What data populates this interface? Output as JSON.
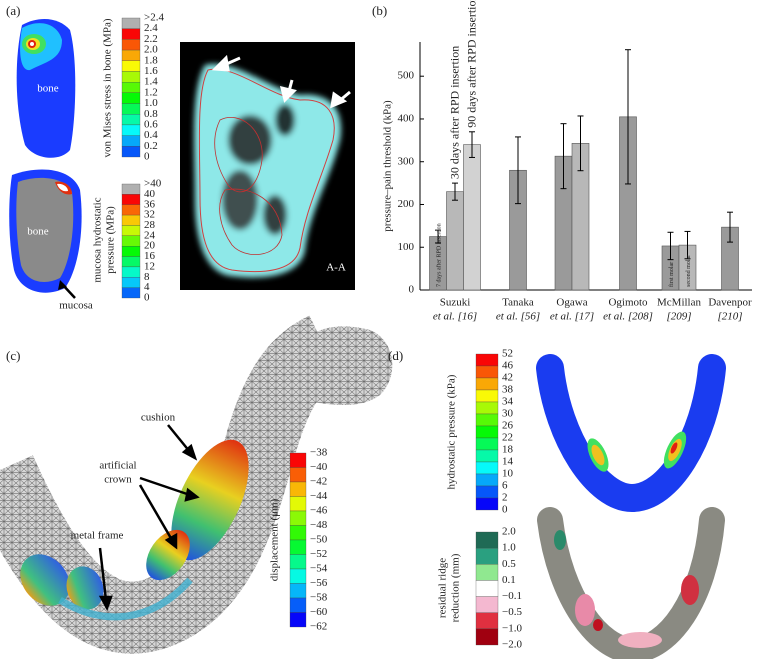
{
  "panel_a": {
    "label": "(a)",
    "stress_scale_title": "von Mises stress in bone (MPa)",
    "stress_ticks": [
      ">2.4",
      "2.4",
      "2.2",
      "2.0",
      "1.8",
      "1.6",
      "1.4",
      "1.2",
      "1.0",
      "0.8",
      "0.6",
      "0.4",
      "0.2",
      "0"
    ],
    "bone_top": "bone",
    "bone_bottom": "bone",
    "mucosa": "mucosa",
    "mucosa_scale_title": [
      "mucosa hydrostatic",
      "pressure (MPa)"
    ],
    "mucosa_ticks": [
      ">40",
      "40",
      "36",
      "32",
      "28",
      "24",
      "20",
      "16",
      "12",
      "8",
      "4",
      "0"
    ],
    "section": "A-A"
  },
  "chart_data": {
    "type": "bar",
    "panel_label": "(b)",
    "y_label": "pressure–pain threshold (kPa)",
    "ylim": [
      0,
      580
    ],
    "yticks": [
      0,
      100,
      200,
      300,
      400,
      500
    ],
    "groups": [
      {
        "name": [
          "Suzuki",
          "et al. [16]"
        ],
        "bars": [
          {
            "label": "7 days after RPD insertion",
            "value": 125,
            "error": 15,
            "color": "#9a9a9a"
          },
          {
            "label": "30 days after RPD insertion",
            "value": 230,
            "error": 20,
            "color": "#b8b8b8"
          },
          {
            "label": "90 days after RPD insertion",
            "value": 340,
            "error": 30,
            "color": "#d2d2d2"
          }
        ]
      },
      {
        "name": [
          "Tanaka",
          "et al. [56]"
        ],
        "bars": [
          {
            "value": 280,
            "error": 78,
            "color": "#9a9a9a"
          }
        ]
      },
      {
        "name": [
          "Ogawa",
          "et al. [17]"
        ],
        "bars": [
          {
            "value": 313,
            "error": 76,
            "color": "#9a9a9a"
          },
          {
            "value": 343,
            "error": 64,
            "color": "#b8b8b8"
          }
        ]
      },
      {
        "name": [
          "Ogimoto",
          "et al. [208]"
        ],
        "bars": [
          {
            "value": 405,
            "error": 157,
            "color": "#9a9a9a"
          }
        ]
      },
      {
        "name": [
          "McMillan",
          "[209]"
        ],
        "bars": [
          {
            "label": "first molar",
            "value": 103,
            "error": 32,
            "color": "#9a9a9a"
          },
          {
            "label": "second molar",
            "value": 105,
            "error": 32,
            "color": "#b8b8b8"
          }
        ]
      },
      {
        "name": [
          "Davenpor",
          "[210]"
        ],
        "bars": [
          {
            "value": 147,
            "error": 35,
            "color": "#9a9a9a"
          }
        ]
      }
    ]
  },
  "panel_c": {
    "label": "(c)",
    "cushion": "cushion",
    "artificial_crown": [
      "artificial",
      "crown"
    ],
    "metal_frame": "metal frame",
    "scale_title": "displacement (μm)",
    "ticks": [
      "−38",
      "−40",
      "−42",
      "−44",
      "−46",
      "−48",
      "−50",
      "−52",
      "−54",
      "−56",
      "−58",
      "−60",
      "−62"
    ]
  },
  "panel_d": {
    "label": "(d)",
    "pressure_title": "hydrostatic pressure (kPa)",
    "pressure_ticks": [
      "52",
      "46",
      "42",
      "38",
      "34",
      "30",
      "26",
      "22",
      "18",
      "14",
      "10",
      "6",
      "2",
      "0"
    ],
    "reduction_title": [
      "residual ridge",
      "reduction (mm)"
    ],
    "reduction_ticks": [
      "2.0",
      "1.0",
      "0.5",
      "0.1",
      "−0.1",
      "−0.5",
      "−1.0",
      "−2.0"
    ]
  }
}
